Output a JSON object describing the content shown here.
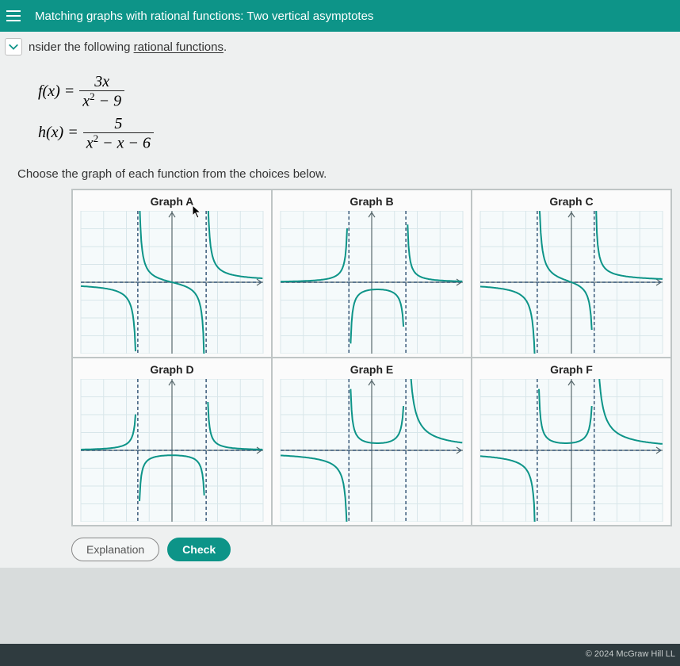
{
  "header": {
    "title": "Matching graphs with rational functions: Two vertical asymptotes"
  },
  "prompt": {
    "lead": "nsider the following ",
    "link": "rational functions",
    "tail": "."
  },
  "formulas": {
    "f": {
      "lhs": "f(x) =",
      "num": "3x",
      "den_a": "x",
      "den_b": " − 9"
    },
    "h": {
      "lhs": "h(x) =",
      "num": "5",
      "den_a": "x",
      "den_b": " − x − 6"
    }
  },
  "instruction": "Choose the graph of each function from the choices below.",
  "graphs": {
    "grid": {
      "xmin": -8,
      "xmax": 8,
      "ymin": -8,
      "ymax": 8,
      "grid_color": "#d8e6ea",
      "axis_color": "#5a6a6e",
      "curve_color": "#0d9488",
      "asymptote_color": "#3a5a7a",
      "bg": "#f5fafb"
    },
    "cells": [
      {
        "title": "Graph A",
        "va": [
          -3,
          3
        ],
        "ha": 0,
        "type": "odd"
      },
      {
        "title": "Graph B",
        "va": [
          -2,
          3
        ],
        "ha": 0,
        "type": "even_neg"
      },
      {
        "title": "Graph C",
        "va": [
          -3,
          2
        ],
        "ha": 0,
        "type": "odd"
      },
      {
        "title": "Graph D",
        "va": [
          -3,
          3
        ],
        "ha": 0,
        "type": "even_neg"
      },
      {
        "title": "Graph E",
        "va": [
          -2,
          3
        ],
        "ha": 0,
        "type": "mixed"
      },
      {
        "title": "Graph F",
        "va": [
          -3,
          2
        ],
        "ha": 0,
        "type": "mixed"
      }
    ]
  },
  "buttons": {
    "explanation": "Explanation",
    "check": "Check"
  },
  "footer": "© 2024 McGraw Hill LL"
}
